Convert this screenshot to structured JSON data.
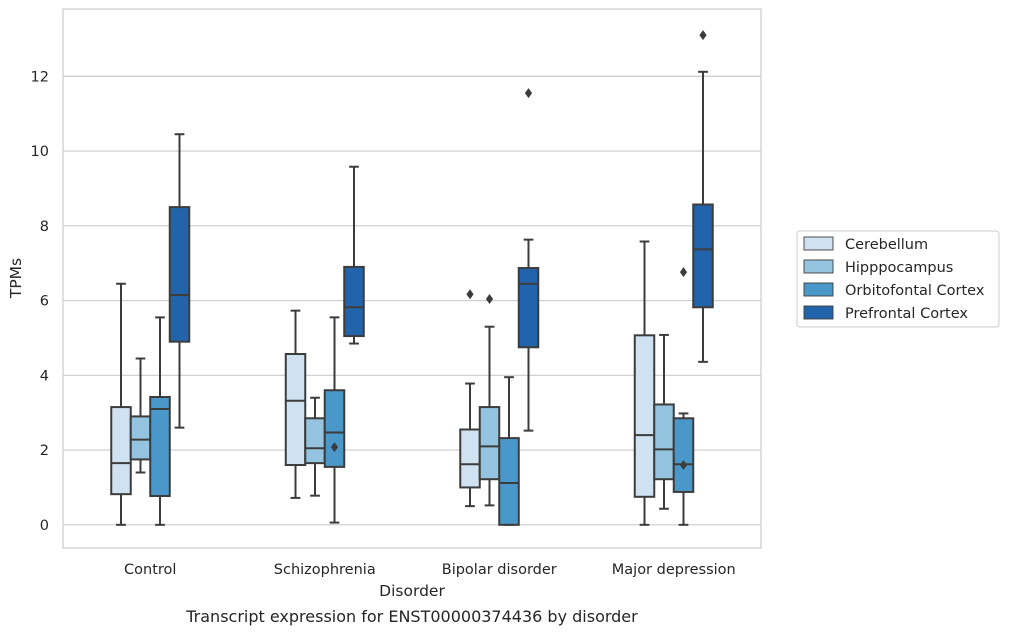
{
  "chart_data": {
    "type": "box",
    "title": "",
    "caption": "Transcript expression for ENST00000374436 by disorder",
    "xlabel": "Disorder",
    "ylabel": "TPMs",
    "ylim": [
      -0.62,
      13.8
    ],
    "yticks": [
      0,
      2,
      4,
      6,
      8,
      10,
      12
    ],
    "grid": "horizontal",
    "legend_position": "right",
    "categories": [
      "Control",
      "Schizophrenia",
      "Bipolar disorder",
      "Major depression"
    ],
    "series": [
      {
        "name": "Cerebellum",
        "color": "#d0e1f2",
        "boxes": [
          {
            "whislo": 0.0,
            "q1": 0.82,
            "med": 1.65,
            "q3": 3.15,
            "whishi": 6.45,
            "fliers": []
          },
          {
            "whislo": 0.72,
            "q1": 1.6,
            "med": 3.32,
            "q3": 4.57,
            "whishi": 5.73,
            "fliers": []
          },
          {
            "whislo": 0.5,
            "q1": 1.0,
            "med": 1.62,
            "q3": 2.55,
            "whishi": 3.78,
            "fliers": [
              6.17
            ]
          },
          {
            "whislo": 0.0,
            "q1": 0.75,
            "med": 2.4,
            "q3": 5.07,
            "whishi": 7.58,
            "fliers": []
          }
        ]
      },
      {
        "name": "Hipppocampus",
        "color": "#94c4df",
        "boxes": [
          {
            "whislo": 1.4,
            "q1": 1.75,
            "med": 2.28,
            "q3": 2.9,
            "whishi": 4.45,
            "fliers": []
          },
          {
            "whislo": 0.78,
            "q1": 1.65,
            "med": 2.05,
            "q3": 2.85,
            "whishi": 3.4,
            "fliers": []
          },
          {
            "whislo": 0.52,
            "q1": 1.22,
            "med": 2.1,
            "q3": 3.15,
            "whishi": 5.3,
            "fliers": [
              6.04
            ]
          },
          {
            "whislo": 0.43,
            "q1": 1.22,
            "med": 2.02,
            "q3": 3.22,
            "whishi": 5.08,
            "fliers": []
          }
        ]
      },
      {
        "name": "Orbitofontal Cortex",
        "color": "#4a98c9",
        "boxes": [
          {
            "whislo": 0.0,
            "q1": 0.77,
            "med": 3.1,
            "q3": 3.42,
            "whishi": 5.55,
            "fliers": []
          },
          {
            "whislo": 0.06,
            "q1": 1.55,
            "med": 2.47,
            "q3": 3.6,
            "whishi": 5.55,
            "fliers": [
              2.08
            ]
          },
          {
            "whislo": 0.0,
            "q1": 0.0,
            "med": 1.12,
            "q3": 2.32,
            "whishi": 3.95,
            "fliers": []
          },
          {
            "whislo": 0.0,
            "q1": 0.88,
            "med": 1.62,
            "q3": 2.85,
            "whishi": 2.98,
            "fliers": [
              6.76,
              1.6
            ]
          }
        ]
      },
      {
        "name": "Prefrontal Cortex",
        "color": "#2164ab",
        "boxes": [
          {
            "whislo": 2.6,
            "q1": 4.9,
            "med": 6.15,
            "q3": 8.5,
            "whishi": 10.45,
            "fliers": []
          },
          {
            "whislo": 4.85,
            "q1": 5.05,
            "med": 5.82,
            "q3": 6.9,
            "whishi": 9.58,
            "fliers": []
          },
          {
            "whislo": 2.52,
            "q1": 4.75,
            "med": 6.45,
            "q3": 6.87,
            "whishi": 7.63,
            "fliers": [
              11.55
            ]
          },
          {
            "whislo": 4.36,
            "q1": 5.82,
            "med": 7.37,
            "q3": 8.57,
            "whishi": 12.12,
            "fliers": [
              13.1
            ]
          }
        ]
      }
    ]
  }
}
